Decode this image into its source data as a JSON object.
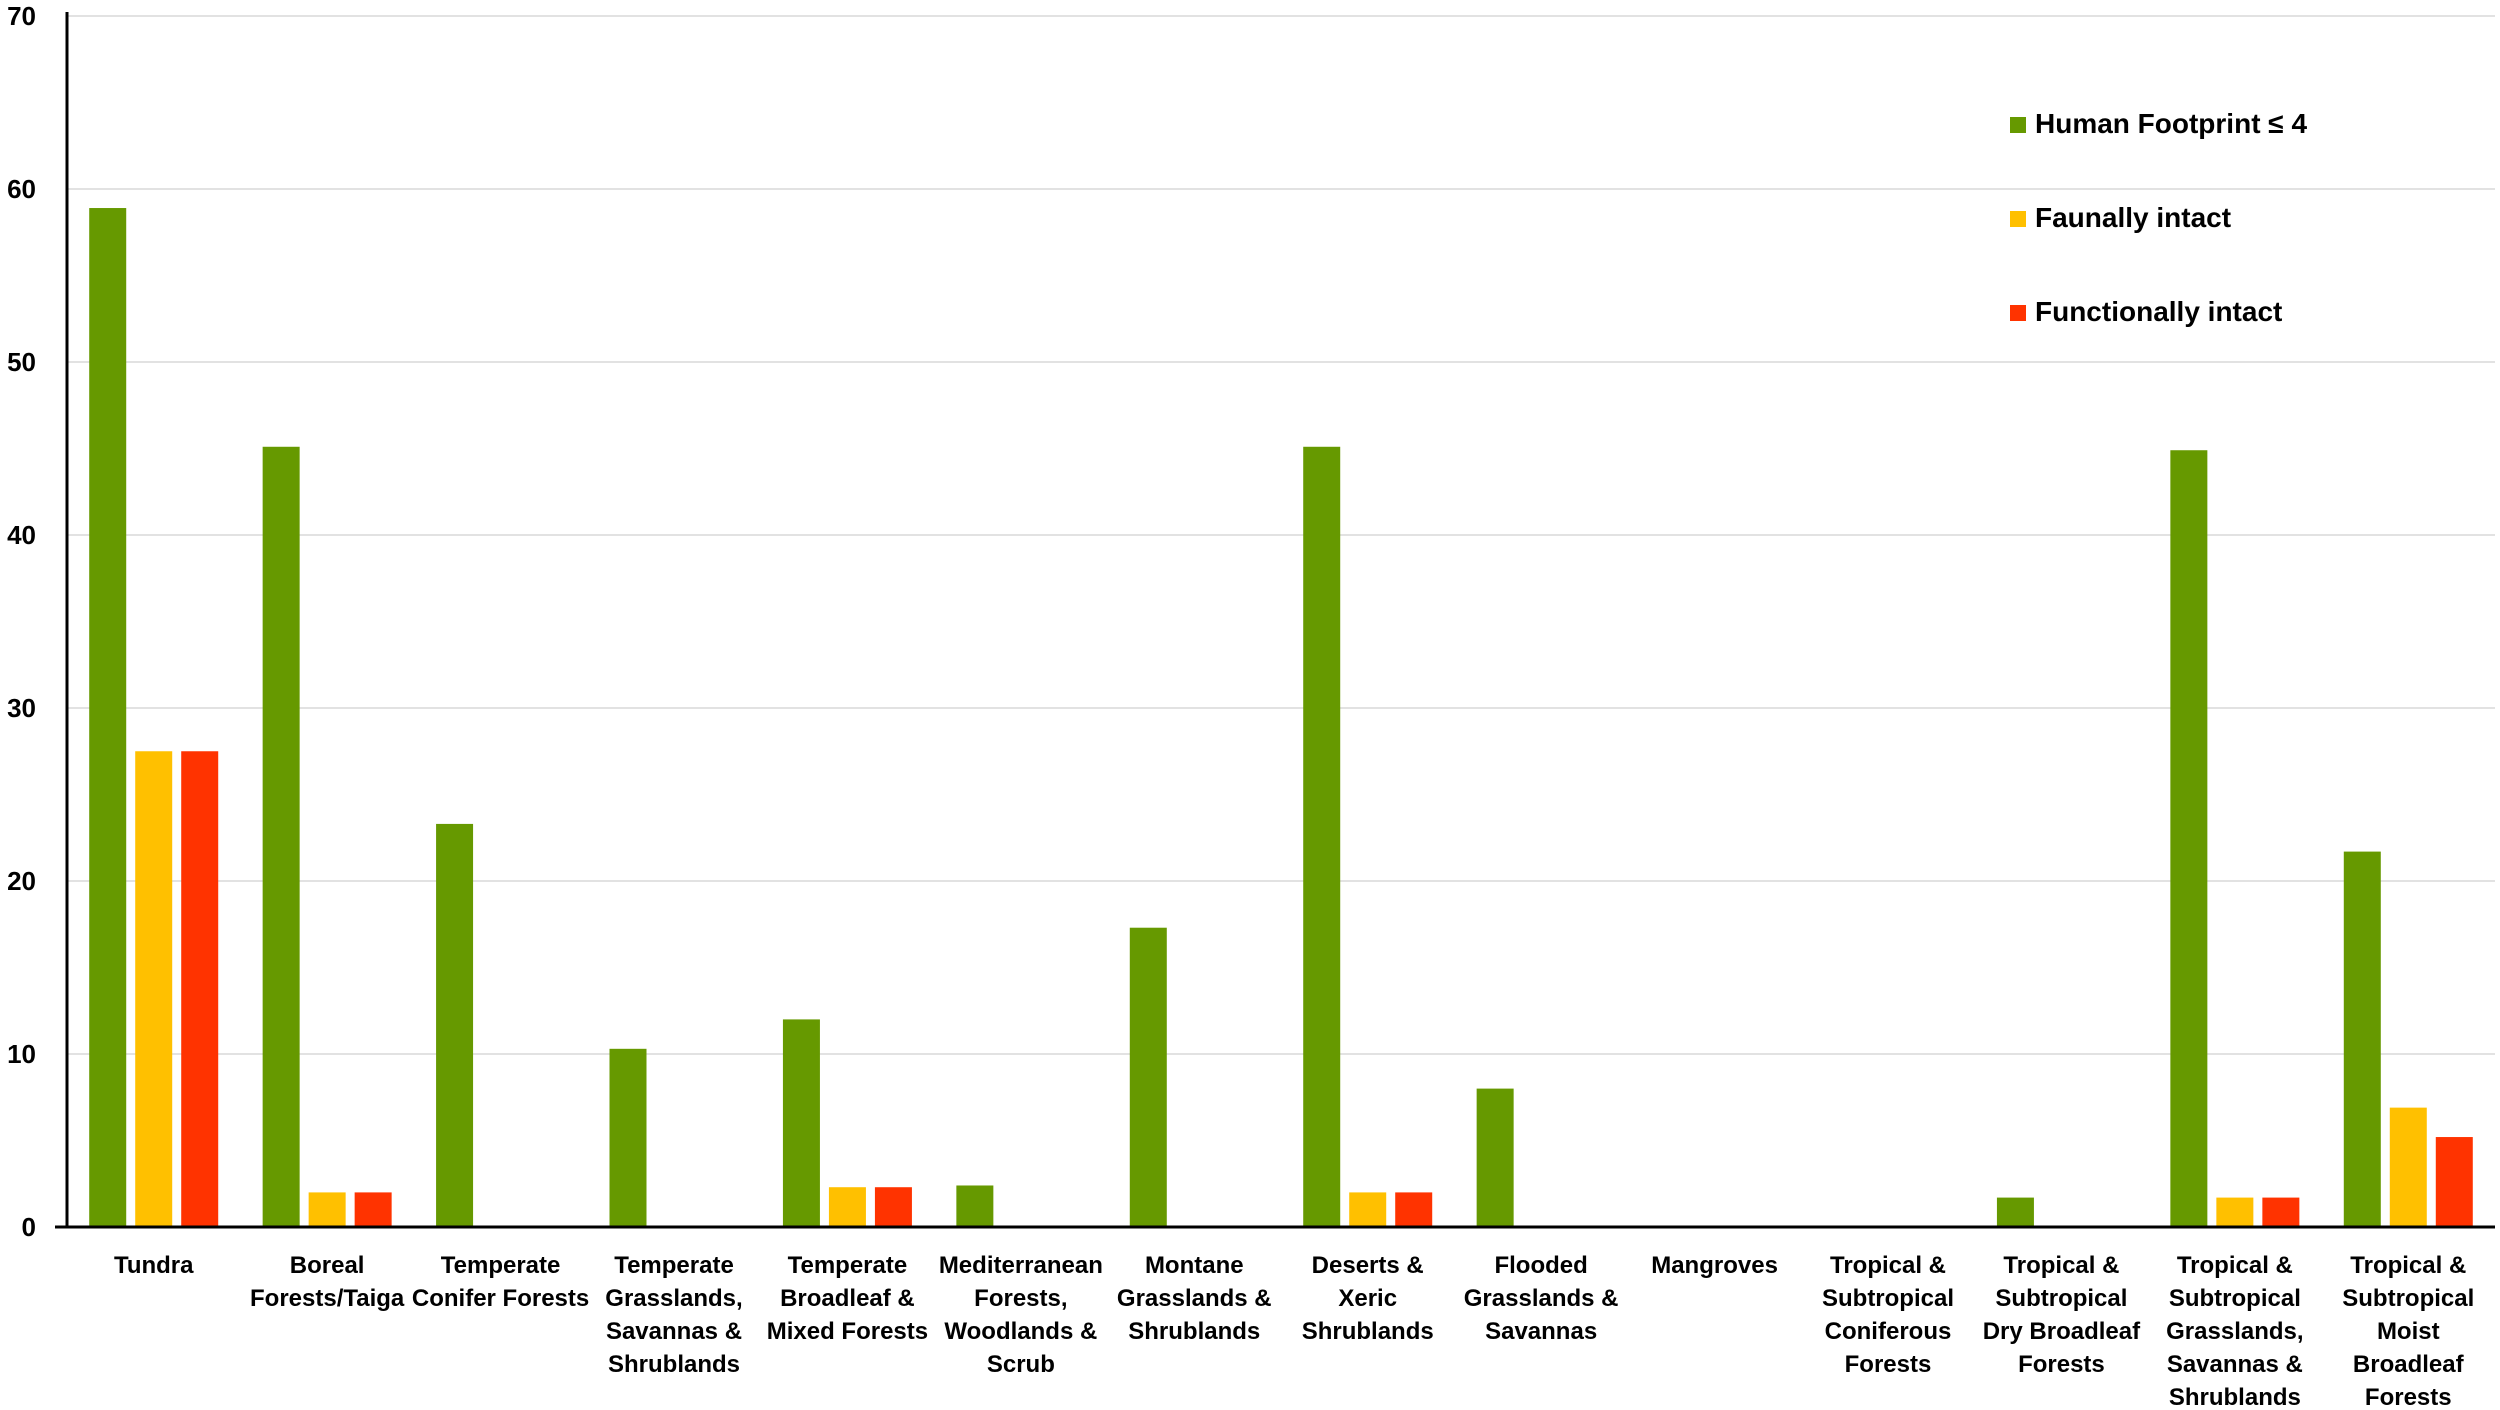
{
  "chart_data": {
    "type": "bar",
    "title": "",
    "xlabel": "",
    "ylabel": "",
    "ylim": [
      0,
      70
    ],
    "y_ticks": [
      0,
      10,
      20,
      30,
      40,
      50,
      60,
      70
    ],
    "grid": true,
    "legend_position": "top-right",
    "categories": [
      [
        "Tundra"
      ],
      [
        "Boreal",
        "Forests/Taiga"
      ],
      [
        "Temperate",
        "Conifer Forests"
      ],
      [
        "Temperate",
        "Grasslands,",
        "Savannas &",
        "Shrublands"
      ],
      [
        "Temperate",
        "Broadleaf &",
        "Mixed Forests"
      ],
      [
        "Mediterranean",
        "Forests,",
        "Woodlands &",
        "Scrub"
      ],
      [
        "Montane",
        "Grasslands &",
        "Shrublands"
      ],
      [
        "Deserts &",
        "Xeric",
        "Shrublands"
      ],
      [
        "Flooded",
        "Grasslands &",
        "Savannas"
      ],
      [
        "Mangroves"
      ],
      [
        "Tropical &",
        "Subtropical",
        "Coniferous",
        "Forests"
      ],
      [
        "Tropical &",
        "Subtropical",
        "Dry Broadleaf",
        "Forests"
      ],
      [
        "Tropical &",
        "Subtropical",
        "Grasslands,",
        "Savannas &",
        "Shrublands"
      ],
      [
        "Tropical &",
        "Subtropical",
        "Moist",
        "Broadleaf",
        "Forests"
      ]
    ],
    "series": [
      {
        "name": "Human Footprint ≤ 4",
        "color": "#669900",
        "values": [
          58.9,
          45.1,
          23.3,
          10.3,
          12.0,
          2.4,
          17.3,
          45.1,
          8.0,
          0,
          0,
          1.7,
          44.9,
          21.7
        ]
      },
      {
        "name": "Faunally intact",
        "color": "#FFC000",
        "values": [
          27.5,
          2.0,
          0,
          0,
          2.3,
          0,
          0,
          2.0,
          0,
          0,
          0,
          0,
          1.7,
          6.9
        ]
      },
      {
        "name": "Functionally intact",
        "color": "#FF3300",
        "values": [
          27.5,
          2.0,
          0,
          0,
          2.3,
          0,
          0,
          2.0,
          0,
          0,
          0,
          0,
          1.7,
          5.2
        ]
      }
    ]
  }
}
